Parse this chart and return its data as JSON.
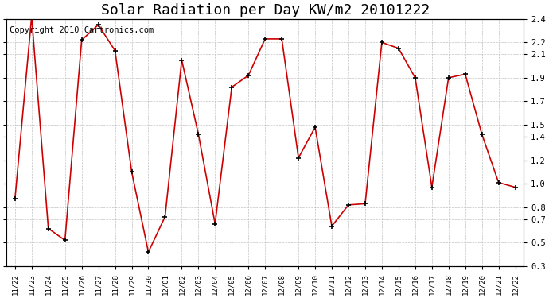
{
  "title": "Solar Radiation per Day KW/m2 20101222",
  "copyright": "Copyright 2010 Cartronics.com",
  "labels": [
    "11/22",
    "11/23",
    "11/24",
    "11/25",
    "11/26",
    "11/27",
    "11/28",
    "11/29",
    "11/30",
    "12/01",
    "12/02",
    "12/03",
    "12/04",
    "12/05",
    "12/06",
    "12/07",
    "12/08",
    "12/09",
    "12/10",
    "12/11",
    "12/12",
    "12/13",
    "12/14",
    "12/15",
    "12/16",
    "12/17",
    "12/18",
    "12/19",
    "12/20",
    "12/21",
    "12/22"
  ],
  "values": [
    0.87,
    2.42,
    0.62,
    0.52,
    2.22,
    2.35,
    2.13,
    1.1,
    0.42,
    0.72,
    2.05,
    1.42,
    0.66,
    1.82,
    1.92,
    2.23,
    2.23,
    1.22,
    1.48,
    0.64,
    0.82,
    0.83,
    2.2,
    2.15,
    1.9,
    0.97,
    1.9,
    1.93,
    1.42,
    1.01,
    0.97
  ],
  "line_color": "#cc0000",
  "marker_color": "#000000",
  "bg_color": "#ffffff",
  "grid_color": "#aaaaaa",
  "ylim": [
    0.3,
    2.4
  ],
  "yticks": [
    0.3,
    0.5,
    0.7,
    0.8,
    1.0,
    1.2,
    1.4,
    1.5,
    1.7,
    1.9,
    2.1,
    2.2,
    2.4
  ],
  "ytick_labels": [
    "0.3",
    "0.5",
    "0.7",
    "0.8",
    "1.0",
    "1.2",
    "1.4",
    "1.5",
    "1.7",
    "1.9",
    "2.1",
    "2.2",
    "2.4"
  ],
  "title_fontsize": 13,
  "copyright_fontsize": 7.5,
  "figwidth": 6.9,
  "figheight": 3.75,
  "dpi": 100
}
